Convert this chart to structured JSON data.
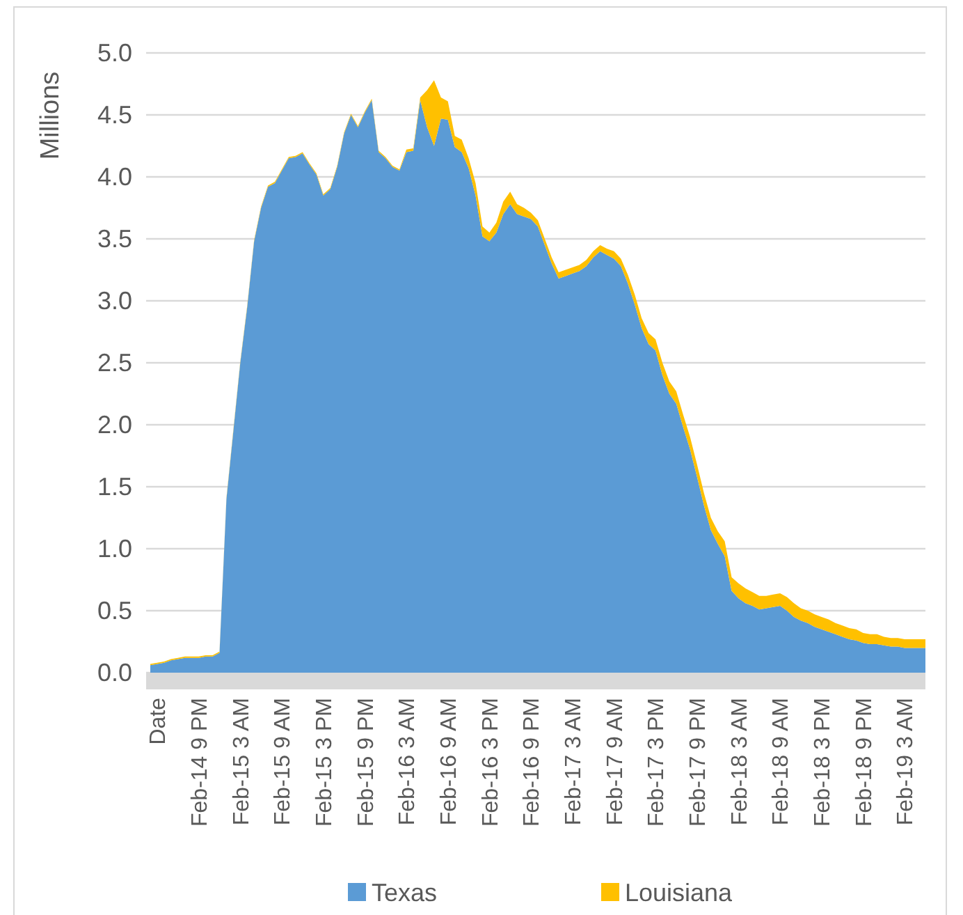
{
  "chart_data": {
    "type": "area",
    "stacked": true,
    "ylabel": "Millions",
    "categories": [
      null,
      "Date",
      null,
      null,
      null,
      null,
      null,
      "Feb-14 9 PM",
      null,
      null,
      null,
      null,
      null,
      "Feb-15 3 AM",
      null,
      null,
      null,
      null,
      null,
      "Feb-15 9 AM",
      null,
      null,
      null,
      null,
      null,
      "Feb-15 3 PM",
      null,
      null,
      null,
      null,
      null,
      "Feb-15 9 PM",
      null,
      null,
      null,
      null,
      null,
      "Feb-16 3 AM",
      null,
      null,
      null,
      null,
      null,
      "Feb-16 9 AM",
      null,
      null,
      null,
      null,
      null,
      "Feb-16 3 PM",
      null,
      null,
      null,
      null,
      null,
      "Feb-16 9 PM",
      null,
      null,
      null,
      null,
      null,
      "Feb-17 3 AM",
      null,
      null,
      null,
      null,
      null,
      "Feb-17 9 AM",
      null,
      null,
      null,
      null,
      null,
      "Feb-17 3 PM",
      null,
      null,
      null,
      null,
      null,
      "Feb-17 9 PM",
      null,
      null,
      null,
      null,
      null,
      "Feb-18 3 AM",
      null,
      null,
      null,
      null,
      null,
      "Feb-18 9 AM",
      null,
      null,
      null,
      null,
      null,
      "Feb-18 3 PM",
      null,
      null,
      null,
      null,
      null,
      "Feb-18 9 PM",
      null,
      null,
      null,
      null,
      null,
      "Feb-19 3 AM",
      null,
      null,
      null
    ],
    "series": [
      {
        "name": "Texas",
        "color": "#5b9bd5",
        "values": [
          0.06,
          0.07,
          0.08,
          0.1,
          0.11,
          0.12,
          0.12,
          0.12,
          0.13,
          0.13,
          0.16,
          1.4,
          1.95,
          2.5,
          2.95,
          3.48,
          3.75,
          3.92,
          3.95,
          4.05,
          4.15,
          4.16,
          4.19,
          4.1,
          4.02,
          3.85,
          3.9,
          4.08,
          4.35,
          4.5,
          4.4,
          4.52,
          4.62,
          4.2,
          4.15,
          4.08,
          4.05,
          4.2,
          4.21,
          4.62,
          4.4,
          4.25,
          4.47,
          4.46,
          4.24,
          4.2,
          4.07,
          3.85,
          3.52,
          3.48,
          3.55,
          3.7,
          3.78,
          3.7,
          3.68,
          3.66,
          3.6,
          3.45,
          3.3,
          3.18,
          3.2,
          3.22,
          3.24,
          3.28,
          3.35,
          3.4,
          3.37,
          3.34,
          3.28,
          3.14,
          2.97,
          2.78,
          2.65,
          2.6,
          2.4,
          2.25,
          2.17,
          1.98,
          1.8,
          1.58,
          1.35,
          1.15,
          1.04,
          0.94,
          0.66,
          0.6,
          0.56,
          0.54,
          0.51,
          0.52,
          0.53,
          0.54,
          0.5,
          0.45,
          0.42,
          0.4,
          0.37,
          0.35,
          0.33,
          0.31,
          0.29,
          0.27,
          0.26,
          0.24,
          0.23,
          0.23,
          0.22,
          0.21,
          0.21,
          0.2,
          0.2,
          0.2,
          0.2
        ]
      },
      {
        "name": "Louisiana",
        "color": "#ffc000",
        "values": [
          0.01,
          0.01,
          0.01,
          0.01,
          0.01,
          0.01,
          0.01,
          0.01,
          0.01,
          0.01,
          0.01,
          0.01,
          0.01,
          0.01,
          0.01,
          0.01,
          0.01,
          0.01,
          0.01,
          0.01,
          0.01,
          0.01,
          0.01,
          0.01,
          0.01,
          0.01,
          0.01,
          0.01,
          0.01,
          0.01,
          0.01,
          0.01,
          0.01,
          0.01,
          0.01,
          0.01,
          0.01,
          0.02,
          0.02,
          0.02,
          0.3,
          0.53,
          0.17,
          0.15,
          0.09,
          0.1,
          0.08,
          0.1,
          0.08,
          0.07,
          0.08,
          0.1,
          0.1,
          0.08,
          0.07,
          0.05,
          0.05,
          0.05,
          0.05,
          0.05,
          0.05,
          0.05,
          0.05,
          0.05,
          0.05,
          0.05,
          0.05,
          0.06,
          0.06,
          0.07,
          0.08,
          0.08,
          0.09,
          0.09,
          0.1,
          0.1,
          0.1,
          0.1,
          0.1,
          0.1,
          0.1,
          0.1,
          0.1,
          0.12,
          0.11,
          0.12,
          0.12,
          0.11,
          0.11,
          0.1,
          0.1,
          0.1,
          0.11,
          0.11,
          0.1,
          0.1,
          0.1,
          0.1,
          0.1,
          0.09,
          0.09,
          0.09,
          0.09,
          0.08,
          0.08,
          0.08,
          0.07,
          0.07,
          0.07,
          0.07,
          0.07,
          0.07,
          0.07
        ]
      }
    ],
    "ylim": [
      0,
      5
    ],
    "yticks": [
      {
        "value": 0,
        "label": "0.0"
      },
      {
        "value": 0.5,
        "label": "0.5"
      },
      {
        "value": 1,
        "label": "1.0"
      },
      {
        "value": 1.5,
        "label": "1.5"
      },
      {
        "value": 2,
        "label": "2.0"
      },
      {
        "value": 2.5,
        "label": "2.5"
      },
      {
        "value": 3,
        "label": "3.0"
      },
      {
        "value": 3.5,
        "label": "3.5"
      },
      {
        "value": 4,
        "label": "4.0"
      },
      {
        "value": 4.5,
        "label": "4.5"
      },
      {
        "value": 5,
        "label": "5.0"
      }
    ],
    "grid": "y",
    "legend": "bottom"
  }
}
